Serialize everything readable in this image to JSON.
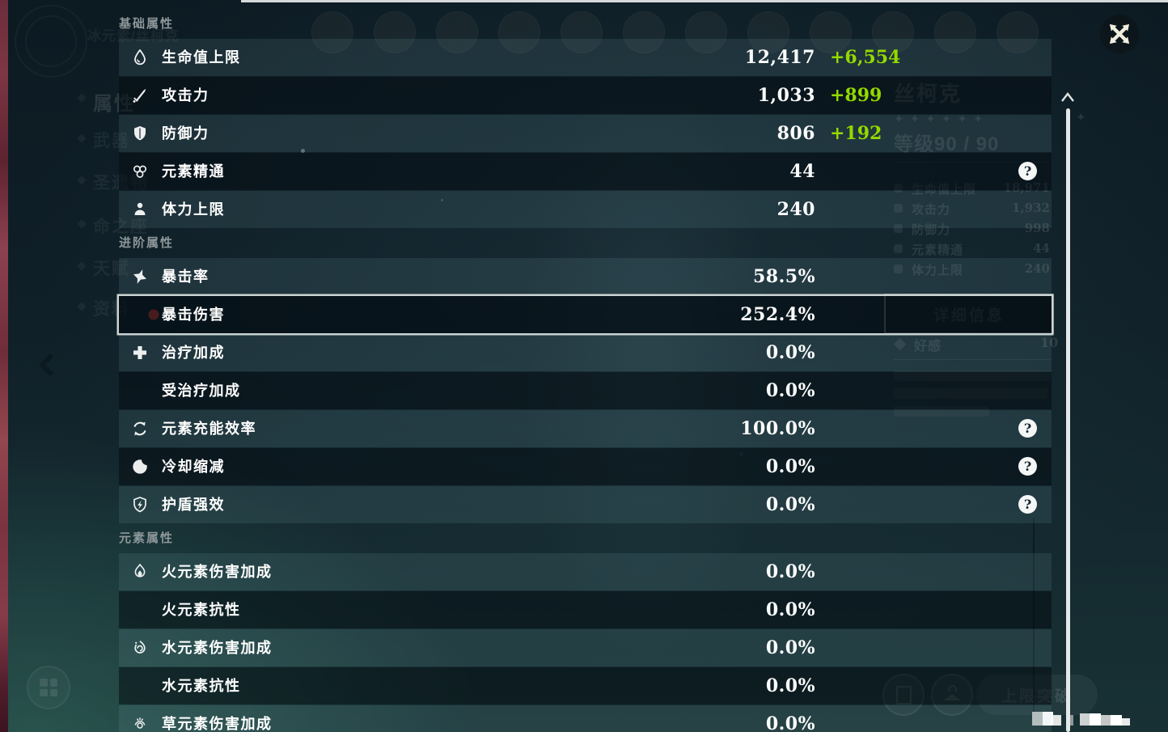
{
  "overlay": {
    "help_glyph": "?",
    "colors": {
      "bonus_green": "#93d900",
      "selected_border": "#ccd4d2",
      "scrollbar": "#e3e8e8",
      "close_icon": "#f2eede"
    },
    "sections": [
      {
        "title": "基础属性",
        "rows": [
          {
            "label": "生命值上限",
            "icon": "hp-droplet-icon",
            "value": "12,417",
            "bonus": "+6,554"
          },
          {
            "label": "攻击力",
            "icon": "attack-sword-icon",
            "value": "1,033",
            "bonus": "+899"
          },
          {
            "label": "防御力",
            "icon": "defense-shield-icon",
            "value": "806",
            "bonus": "+192"
          },
          {
            "label": "元素精通",
            "icon": "elemental-mastery-icon",
            "value": "44",
            "help": true
          },
          {
            "label": "体力上限",
            "icon": "stamina-icon",
            "value": "240"
          }
        ]
      },
      {
        "title": "进阶属性",
        "rows": [
          {
            "label": "暴击率",
            "icon": "crit-rate-icon",
            "value": "58.5%"
          },
          {
            "label": "暴击伤害",
            "icon": "crit-dmg-faded-icon",
            "value": "252.4%",
            "selected": true
          },
          {
            "label": "治疗加成",
            "icon": "healing-bonus-icon",
            "value": "0.0%"
          },
          {
            "label": "受治疗加成",
            "icon": null,
            "value": "0.0%"
          },
          {
            "label": "元素充能效率",
            "icon": "energy-recharge-icon",
            "value": "100.0%",
            "help": true
          },
          {
            "label": "冷却缩减",
            "icon": "cooldown-reduction-icon",
            "value": "0.0%",
            "help": true
          },
          {
            "label": "护盾强效",
            "icon": "shield-strength-icon",
            "value": "0.0%",
            "help": true
          }
        ]
      },
      {
        "title": "元素属性",
        "rows": [
          {
            "label": "火元素伤害加成",
            "icon": "pyro-element-icon",
            "value": "0.0%"
          },
          {
            "label": "火元素抗性",
            "icon": null,
            "value": "0.0%"
          },
          {
            "label": "水元素伤害加成",
            "icon": "hydro-element-icon",
            "value": "0.0%"
          },
          {
            "label": "水元素抗性",
            "icon": null,
            "value": "0.0%"
          },
          {
            "label": "草元素伤害加成",
            "icon": "dendro-element-icon",
            "value": "0.0%"
          }
        ]
      }
    ]
  },
  "background": {
    "element_character_label": "冰元素/丝柯克",
    "character_name": "丝柯克",
    "stars": "✦✦✦✦✦✦",
    "level": "等级90 / 90",
    "stats": [
      {
        "label": "生命值上限",
        "value": "18,971"
      },
      {
        "label": "攻击力",
        "value": "1,932"
      },
      {
        "label": "防御力",
        "value": "998"
      },
      {
        "label": "元素精通",
        "value": "44"
      },
      {
        "label": "体力上限",
        "value": "240"
      }
    ],
    "details_button": "详细信息",
    "friendship_label": "好感",
    "friendship_value": "10",
    "sidebar_items": [
      "属性",
      "武器",
      "圣遗物",
      "命之座",
      "天赋",
      "资料"
    ],
    "limit_break_button": "上限突破"
  }
}
